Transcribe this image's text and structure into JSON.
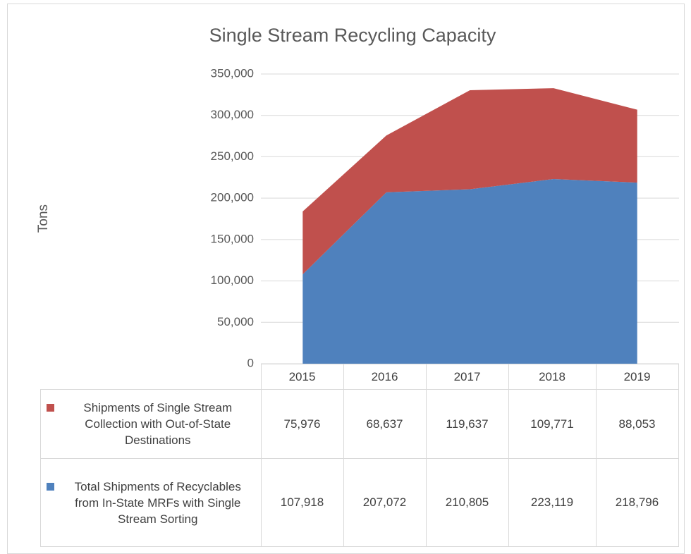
{
  "chart_data": {
    "type": "stacked_area",
    "title": "Single Stream Recycling Capacity",
    "y_label": "Tons",
    "categories": [
      "2015",
      "2016",
      "2017",
      "2018",
      "2019"
    ],
    "series": [
      {
        "name": "Total Shipments of Recyclables from In-State MRFs with Single Stream Sorting",
        "color": "#4f81bd",
        "values": [
          107918,
          207072,
          210805,
          223119,
          218796
        ],
        "value_labels": [
          "107,918",
          "207,072",
          "210,805",
          "223,119",
          "218,796"
        ]
      },
      {
        "name": "Shipments of Single Stream Collection with Out-of-State Destinations",
        "color": "#c0504d",
        "values": [
          75976,
          68637,
          119637,
          109771,
          88053
        ],
        "value_labels": [
          "75,976",
          "68,637",
          "119,637",
          "109,771",
          "88,053"
        ]
      }
    ],
    "ylim": [
      0,
      350000
    ],
    "yticks": [
      0,
      {
        "value": 50000,
        "label": "50,000"
      },
      {
        "value": 100000,
        "label": "100,000"
      },
      {
        "value": 150000,
        "label": "150,000"
      },
      {
        "value": 200000,
        "label": "200,000"
      },
      {
        "value": 250000,
        "label": "250,000"
      },
      {
        "value": 300000,
        "label": "300,000"
      },
      {
        "value": 350000,
        "label": "350,000"
      }
    ],
    "grid": true,
    "legend": "table"
  }
}
